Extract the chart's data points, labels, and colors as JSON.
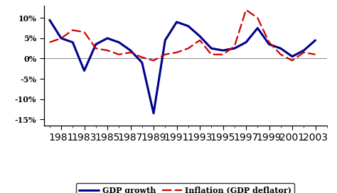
{
  "years": [
    1980,
    1981,
    1982,
    1983,
    1984,
    1985,
    1986,
    1987,
    1988,
    1989,
    1990,
    1991,
    1992,
    1993,
    1994,
    1995,
    1996,
    1997,
    1998,
    1999,
    2000,
    2001,
    2002,
    2003
  ],
  "gdp_growth": [
    9.5,
    5.0,
    4.0,
    -3.0,
    3.5,
    5.0,
    4.0,
    2.0,
    -1.0,
    -13.5,
    4.5,
    9.0,
    8.0,
    5.5,
    2.5,
    2.0,
    2.5,
    4.0,
    7.5,
    3.5,
    2.5,
    0.5,
    2.0,
    4.5
  ],
  "inflation": [
    4.0,
    5.0,
    7.0,
    6.5,
    2.5,
    2.0,
    1.0,
    1.5,
    0.3,
    -0.5,
    1.0,
    1.5,
    2.5,
    4.5,
    1.0,
    1.0,
    3.0,
    12.0,
    10.0,
    4.0,
    1.0,
    -0.5,
    1.5,
    1.0
  ],
  "gdp_color": "#00008B",
  "inflation_color": "#CC0000",
  "background_color": "#FFFFFF",
  "ytick_labels": [
    "-15%",
    "-10%",
    "-5%",
    "0%",
    "5%",
    "10%"
  ],
  "ytick_values": [
    -15,
    -10,
    -5,
    0,
    5,
    10
  ],
  "ylim": [
    -16.5,
    13
  ],
  "xlim_left": 1979.5,
  "xlim_right": 2004.0,
  "xtick_years": [
    1981,
    1983,
    1985,
    1987,
    1989,
    1991,
    1993,
    1995,
    1997,
    1999,
    2001,
    2003
  ],
  "legend_gdp": "GDP growth",
  "legend_inflation": "Inflation (GDP deflator)"
}
